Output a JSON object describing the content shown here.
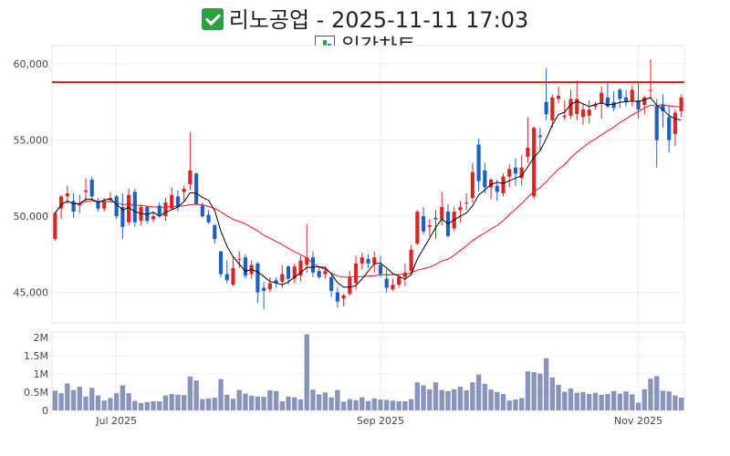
{
  "header": {
    "title_icon": "check-mark-button-icon",
    "title": "리노공업 - 2025-11-11 17:03",
    "subtitle_icon": "bar-chart-icon",
    "subtitle": "일간차트"
  },
  "colors": {
    "up": "#d62728",
    "down": "#1f5fbf",
    "resistance": "#e8141c",
    "ma_short": "#000000",
    "ma_long": "#e8141c",
    "volume": "#8a94b8"
  },
  "chart_data": {
    "type": "candlestick",
    "title": "일간차트",
    "price_ylim": [
      43000,
      61200
    ],
    "price_yticks": [
      45000,
      50000,
      55000,
      60000
    ],
    "price_ytick_labels": [
      "45,000",
      "50,000",
      "55,000",
      "60,000"
    ],
    "volume_ylim": [
      0,
      2150000
    ],
    "volume_yticks": [
      0,
      500000,
      1000000,
      1500000,
      2000000
    ],
    "volume_ytick_labels": [
      "0",
      "0.5M",
      "1M",
      "1.5M",
      "2M"
    ],
    "xtick_labels": [
      {
        "label": "Jul 2025",
        "index": 10
      },
      {
        "label": "Sep 2025",
        "index": 53
      },
      {
        "label": "Nov 2025",
        "index": 95
      }
    ],
    "resistance_level": 58800,
    "candles": [
      [
        48500,
        50300,
        48400,
        50200
      ],
      [
        50500,
        51400,
        49800,
        51300
      ],
      [
        51300,
        52000,
        50800,
        51500
      ],
      [
        51000,
        51500,
        49900,
        50300
      ],
      [
        50700,
        51400,
        50200,
        50800
      ],
      [
        51600,
        52500,
        50900,
        51700
      ],
      [
        52400,
        52600,
        51000,
        51300
      ],
      [
        51000,
        51200,
        50300,
        50500
      ],
      [
        50500,
        51200,
        50300,
        51000
      ],
      [
        51100,
        51600,
        50900,
        51200
      ],
      [
        51300,
        51400,
        49800,
        50000
      ],
      [
        50600,
        51500,
        48500,
        49300
      ],
      [
        49600,
        51800,
        49400,
        51400
      ],
      [
        51600,
        51800,
        49300,
        49600
      ],
      [
        49700,
        50800,
        49400,
        50600
      ],
      [
        50600,
        50700,
        49500,
        49700
      ],
      [
        49800,
        50300,
        49600,
        50000
      ],
      [
        50700,
        50900,
        49900,
        50100
      ],
      [
        50000,
        51200,
        49700,
        50900
      ],
      [
        50500,
        51900,
        50400,
        51400
      ],
      [
        51300,
        51700,
        50300,
        50600
      ],
      [
        51600,
        52000,
        51000,
        51800
      ],
      [
        52100,
        55500,
        51700,
        53000
      ],
      [
        52800,
        52900,
        50800,
        50800
      ],
      [
        50700,
        50900,
        49900,
        50000
      ],
      [
        50100,
        50400,
        49500,
        49600
      ],
      [
        49400,
        49500,
        48200,
        48500
      ],
      [
        47700,
        47700,
        46000,
        46200
      ],
      [
        46200,
        47100,
        45600,
        45800
      ],
      [
        45500,
        47300,
        45400,
        46600
      ],
      [
        47200,
        47700,
        46600,
        47200
      ],
      [
        47300,
        47500,
        45900,
        46100
      ],
      [
        46200,
        47100,
        45900,
        46800
      ],
      [
        46900,
        47000,
        44300,
        45000
      ],
      [
        45300,
        45700,
        43900,
        45100
      ],
      [
        45200,
        46000,
        45000,
        45600
      ],
      [
        45800,
        46000,
        45300,
        45600
      ],
      [
        45700,
        46800,
        45300,
        46200
      ],
      [
        46700,
        46800,
        45500,
        45900
      ],
      [
        45900,
        46900,
        45600,
        46700
      ],
      [
        46100,
        47400,
        45700,
        47100
      ],
      [
        46800,
        49500,
        46300,
        47300
      ],
      [
        47300,
        47700,
        46000,
        46300
      ],
      [
        46400,
        46700,
        45900,
        46000
      ],
      [
        46200,
        46700,
        45900,
        46400
      ],
      [
        46000,
        46300,
        44700,
        45100
      ],
      [
        45000,
        45300,
        44000,
        44400
      ],
      [
        44600,
        44900,
        44100,
        44800
      ],
      [
        44900,
        46400,
        44800,
        46000
      ],
      [
        45600,
        47400,
        45200,
        46900
      ],
      [
        46900,
        47600,
        46500,
        47300
      ],
      [
        47200,
        47500,
        46600,
        46900
      ],
      [
        46900,
        47700,
        46300,
        47300
      ],
      [
        46800,
        47400,
        46000,
        46200
      ],
      [
        45900,
        46500,
        45000,
        45300
      ],
      [
        45200,
        45900,
        45100,
        45500
      ],
      [
        45500,
        46200,
        45300,
        46000
      ],
      [
        46000,
        46900,
        45400,
        46300
      ],
      [
        46400,
        48100,
        46100,
        47800
      ],
      [
        48200,
        50400,
        48100,
        50300
      ],
      [
        50000,
        50600,
        48800,
        49000
      ],
      [
        49300,
        49800,
        48700,
        49400
      ],
      [
        49900,
        50400,
        48500,
        49800
      ],
      [
        49800,
        51600,
        49400,
        50600
      ],
      [
        50300,
        50800,
        48600,
        48700
      ],
      [
        49200,
        50600,
        49000,
        50300
      ],
      [
        50400,
        51000,
        49600,
        50600
      ],
      [
        50900,
        51500,
        50400,
        50900
      ],
      [
        51200,
        53500,
        50900,
        52900
      ],
      [
        54700,
        55100,
        51600,
        52300
      ],
      [
        53000,
        53500,
        51500,
        51900
      ],
      [
        51900,
        52500,
        51100,
        52400
      ],
      [
        52000,
        52400,
        51000,
        51600
      ],
      [
        51500,
        52800,
        51300,
        52600
      ],
      [
        52600,
        53400,
        51900,
        53100
      ],
      [
        53200,
        53800,
        52000,
        52800
      ],
      [
        52500,
        54000,
        52000,
        53200
      ],
      [
        53900,
        56500,
        53500,
        54500
      ],
      [
        51300,
        55900,
        51100,
        55800
      ],
      [
        55300,
        55800,
        54300,
        55200
      ],
      [
        57500,
        59700,
        56300,
        56700
      ],
      [
        56300,
        58000,
        55800,
        57800
      ],
      [
        57700,
        58500,
        57400,
        57900
      ],
      [
        56500,
        57600,
        56300,
        56600
      ],
      [
        56600,
        58300,
        56400,
        57700
      ],
      [
        56700,
        58900,
        56300,
        57700
      ],
      [
        56500,
        57400,
        56000,
        57000
      ],
      [
        56600,
        57600,
        56100,
        57000
      ],
      [
        57200,
        57500,
        57000,
        57300
      ],
      [
        57400,
        58500,
        56400,
        58100
      ],
      [
        57800,
        58800,
        57100,
        57200
      ],
      [
        57500,
        58200,
        56900,
        57100
      ],
      [
        58300,
        58400,
        57100,
        57700
      ],
      [
        57800,
        58300,
        57200,
        57500
      ],
      [
        57600,
        58600,
        57200,
        58300
      ],
      [
        57600,
        58800,
        56400,
        57000
      ],
      [
        57300,
        57900,
        56700,
        57800
      ],
      [
        58300,
        60300,
        57700,
        58300
      ],
      [
        57200,
        57700,
        53200,
        55000
      ],
      [
        57300,
        58000,
        55800,
        56900
      ],
      [
        56500,
        57300,
        54200,
        55000
      ],
      [
        55400,
        57000,
        54600,
        56800
      ],
      [
        56900,
        58000,
        56500,
        57800
      ]
    ],
    "volume": [
      540000,
      470000,
      740000,
      560000,
      650000,
      380000,
      620000,
      410000,
      270000,
      340000,
      470000,
      690000,
      470000,
      260000,
      200000,
      230000,
      250000,
      250000,
      410000,
      450000,
      430000,
      420000,
      930000,
      820000,
      310000,
      330000,
      350000,
      860000,
      430000,
      320000,
      560000,
      460000,
      400000,
      380000,
      370000,
      550000,
      530000,
      250000,
      380000,
      360000,
      300000,
      2090000,
      570000,
      440000,
      490000,
      360000,
      560000,
      240000,
      310000,
      280000,
      360000,
      260000,
      330000,
      300000,
      290000,
      270000,
      250000,
      250000,
      310000,
      770000,
      690000,
      580000,
      770000,
      560000,
      530000,
      580000,
      650000,
      550000,
      770000,
      980000,
      730000,
      570000,
      500000,
      450000,
      270000,
      300000,
      340000,
      1070000,
      1050000,
      1010000,
      1430000,
      900000,
      700000,
      510000,
      600000,
      480000,
      500000,
      450000,
      480000,
      430000,
      450000,
      530000,
      460000,
      520000,
      440000,
      210000,
      580000,
      870000,
      940000,
      540000,
      520000,
      410000,
      350000
    ]
  }
}
